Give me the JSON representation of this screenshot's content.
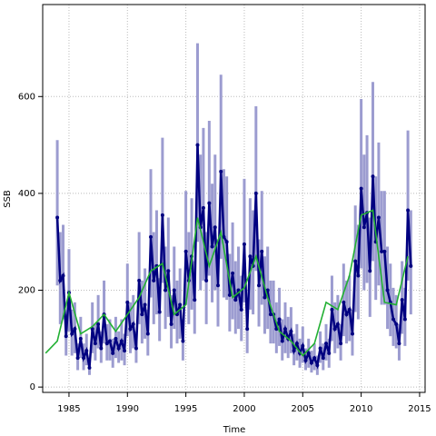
{
  "chart_data": {
    "type": "line",
    "x_label": "Time",
    "y_label": "SSB",
    "xlim": [
      1982.75,
      2015.47
    ],
    "ylim": [
      -11,
      790
    ],
    "xticks": [
      1985,
      1990,
      1995,
      2000,
      2005,
      2010,
      2015
    ],
    "yticks": [
      0,
      200,
      400,
      600
    ],
    "grid": true,
    "series": [
      {
        "color": "#000080",
        "band_color": "#9c9cd0",
        "markers": true,
        "x": [
          1984,
          1984.25,
          1984.5,
          1984.75,
          1985,
          1985.25,
          1985.5,
          1985.75,
          1986,
          1986.25,
          1986.5,
          1986.75,
          1987,
          1987.25,
          1987.5,
          1987.75,
          1988,
          1988.25,
          1988.5,
          1988.75,
          1989,
          1989.25,
          1989.5,
          1989.75,
          1990,
          1990.25,
          1990.5,
          1990.75,
          1991,
          1991.25,
          1991.5,
          1991.75,
          1992,
          1992.25,
          1992.5,
          1992.75,
          1993,
          1993.25,
          1993.5,
          1993.75,
          1994,
          1994.25,
          1994.5,
          1994.75,
          1995,
          1995.25,
          1995.5,
          1995.75,
          1996,
          1996.25,
          1996.5,
          1996.75,
          1997,
          1997.25,
          1997.5,
          1997.75,
          1998,
          1998.25,
          1998.5,
          1998.75,
          1999,
          1999.25,
          1999.5,
          1999.75,
          2000,
          2000.25,
          2000.5,
          2000.75,
          2001,
          2001.25,
          2001.5,
          2001.75,
          2002,
          2002.25,
          2002.5,
          2002.75,
          2003,
          2003.25,
          2003.5,
          2003.75,
          2004,
          2004.25,
          2004.5,
          2004.75,
          2005,
          2005.25,
          2005.5,
          2005.75,
          2006,
          2006.25,
          2006.5,
          2006.75,
          2007,
          2007.25,
          2007.5,
          2007.75,
          2008,
          2008.25,
          2008.5,
          2008.75,
          2009,
          2009.25,
          2009.5,
          2009.75,
          2010,
          2010.25,
          2010.5,
          2010.75,
          2011,
          2011.25,
          2011.5,
          2011.75,
          2012,
          2012.25,
          2012.5,
          2012.75,
          2013,
          2013.25,
          2013.5,
          2013.75,
          2014,
          2014.25
        ],
        "values": [
          350,
          220,
          230,
          105,
          195,
          110,
          120,
          60,
          100,
          60,
          75,
          40,
          120,
          90,
          130,
          80,
          150,
          90,
          95,
          70,
          100,
          80,
          95,
          75,
          175,
          120,
          130,
          80,
          220,
          150,
          170,
          110,
          310,
          220,
          250,
          155,
          355,
          200,
          240,
          130,
          200,
          150,
          170,
          95,
          280,
          220,
          270,
          180,
          500,
          330,
          370,
          220,
          380,
          290,
          330,
          210,
          445,
          310,
          300,
          190,
          235,
          180,
          200,
          160,
          295,
          120,
          270,
          250,
          400,
          210,
          280,
          185,
          200,
          150,
          150,
          120,
          140,
          95,
          120,
          100,
          115,
          75,
          90,
          70,
          85,
          55,
          70,
          50,
          60,
          45,
          80,
          60,
          90,
          70,
          160,
          120,
          130,
          90,
          175,
          150,
          160,
          110,
          260,
          230,
          410,
          330,
          360,
          240,
          435,
          300,
          350,
          280,
          280,
          200,
          175,
          140,
          130,
          90,
          180,
          140,
          365,
          250
        ],
        "lower": [
          210,
          130,
          140,
          65,
          115,
          65,
          70,
          35,
          60,
          35,
          45,
          25,
          70,
          55,
          80,
          50,
          90,
          55,
          55,
          40,
          60,
          50,
          55,
          45,
          105,
          70,
          80,
          50,
          130,
          90,
          100,
          65,
          185,
          130,
          150,
          95,
          215,
          120,
          145,
          80,
          120,
          90,
          100,
          55,
          170,
          130,
          160,
          110,
          300,
          200,
          220,
          130,
          230,
          175,
          200,
          125,
          265,
          185,
          180,
          115,
          140,
          110,
          120,
          95,
          175,
          70,
          160,
          150,
          240,
          125,
          170,
          110,
          120,
          90,
          90,
          70,
          85,
          55,
          70,
          60,
          70,
          45,
          55,
          40,
          50,
          35,
          40,
          30,
          35,
          25,
          50,
          35,
          55,
          40,
          95,
          70,
          80,
          55,
          105,
          90,
          95,
          65,
          155,
          140,
          245,
          200,
          215,
          145,
          260,
          180,
          210,
          170,
          170,
          120,
          105,
          85,
          80,
          55,
          110,
          85,
          220,
          150
        ],
        "upper": [
          510,
          320,
          335,
          150,
          285,
          160,
          175,
          90,
          145,
          90,
          110,
          60,
          175,
          130,
          190,
          115,
          220,
          130,
          140,
          100,
          145,
          115,
          140,
          110,
          255,
          175,
          190,
          115,
          320,
          220,
          245,
          160,
          450,
          320,
          365,
          225,
          515,
          290,
          350,
          190,
          290,
          220,
          245,
          140,
          405,
          320,
          390,
          260,
          710,
          480,
          535,
          320,
          550,
          420,
          480,
          305,
          645,
          450,
          435,
          275,
          340,
          260,
          290,
          230,
          430,
          175,
          390,
          365,
          580,
          305,
          405,
          270,
          290,
          220,
          220,
          175,
          205,
          140,
          175,
          145,
          165,
          110,
          130,
          100,
          125,
          80,
          100,
          75,
          90,
          65,
          115,
          90,
          130,
          100,
          230,
          175,
          190,
          130,
          255,
          220,
          230,
          160,
          375,
          335,
          595,
          480,
          520,
          350,
          630,
          435,
          505,
          405,
          405,
          290,
          255,
          205,
          190,
          130,
          260,
          205,
          530,
          365
        ]
      },
      {
        "color": "#22b033",
        "markers": false,
        "x": [
          1983,
          1984,
          1985,
          1986,
          1987,
          1988,
          1989,
          1990,
          1991,
          1992,
          1993,
          1994,
          1995,
          1996,
          1997,
          1998,
          1999,
          2000,
          2001,
          2002,
          2003,
          2004,
          2005,
          2006,
          2007,
          2008,
          2009,
          2010,
          2011,
          2012,
          2013,
          2014
        ],
        "values": [
          70,
          95,
          195,
          110,
          125,
          150,
          115,
          150,
          185,
          240,
          255,
          150,
          170,
          350,
          250,
          320,
          185,
          205,
          270,
          185,
          115,
          95,
          65,
          90,
          175,
          160,
          230,
          355,
          365,
          175,
          170,
          270
        ]
      }
    ]
  }
}
